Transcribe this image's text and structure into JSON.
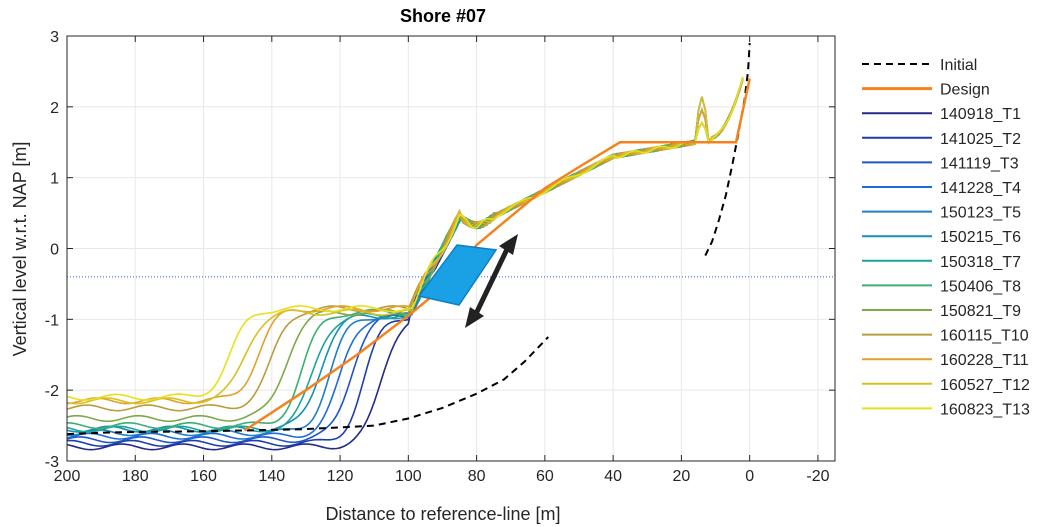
{
  "chart_data": {
    "type": "line",
    "title": "Shore #07",
    "xlabel": "Distance to reference-line [m]",
    "ylabel": "Vertical level w.r.t. NAP [m]",
    "xlim": [
      200,
      -25
    ],
    "ylim": [
      -3,
      3
    ],
    "x_reversed": true,
    "x_ticks": [
      "200",
      "180",
      "160",
      "140",
      "120",
      "100",
      "80",
      "60",
      "40",
      "20",
      "0",
      "-20"
    ],
    "x_tick_values": [
      200,
      180,
      160,
      140,
      120,
      100,
      80,
      60,
      40,
      20,
      0,
      -20
    ],
    "y_ticks": [
      "-3",
      "-2",
      "-1",
      "0",
      "1",
      "2",
      "3"
    ],
    "y_tick_values": [
      -3,
      -2,
      -1,
      0,
      1,
      2,
      3
    ],
    "grid": true,
    "legend_position": "outside-right",
    "reference_line": {
      "y": -0.4,
      "color": "#3355ff",
      "style": "dotted"
    },
    "series": [
      {
        "name": "Initial",
        "style": "dashed",
        "color": "#000000",
        "segments": [
          [
            [
              200,
              -2.62
            ],
            [
              190,
              -2.6
            ],
            [
              180,
              -2.59
            ],
            [
              160,
              -2.58
            ],
            [
              148,
              -2.57
            ],
            [
              130,
              -2.55
            ],
            [
              110,
              -2.5
            ],
            [
              100,
              -2.4
            ],
            [
              90,
              -2.25
            ],
            [
              80,
              -2.05
            ],
            [
              72,
              -1.85
            ],
            [
              66,
              -1.6
            ],
            [
              62,
              -1.4
            ],
            [
              59,
              -1.25
            ]
          ],
          [
            [
              13,
              -0.1
            ],
            [
              11,
              0.1
            ],
            [
              9,
              0.4
            ],
            [
              7,
              0.75
            ],
            [
              5,
              1.2
            ],
            [
              3,
              1.7
            ],
            [
              1.5,
              2.1
            ],
            [
              0.5,
              2.5
            ],
            [
              0,
              2.9
            ]
          ]
        ]
      },
      {
        "name": "Design",
        "style": "solid",
        "color": "#f5821f",
        "points": [
          [
            148,
            -2.57
          ],
          [
            130,
            -2.0
          ],
          [
            115,
            -1.5
          ],
          [
            100,
            -0.95
          ],
          [
            90,
            -0.55
          ],
          [
            80,
            0.05
          ],
          [
            70,
            0.45
          ],
          [
            60,
            0.85
          ],
          [
            50,
            1.15
          ],
          [
            38,
            1.5
          ],
          [
            20,
            1.5
          ],
          [
            4,
            1.5
          ],
          [
            0,
            2.4
          ]
        ]
      },
      {
        "name": "140918_T1",
        "style": "solid",
        "color": "#222a8a",
        "start": -2.8,
        "plateau": -0.95,
        "toe": 118
      },
      {
        "name": "141025_T2",
        "style": "solid",
        "color": "#1e3eaa",
        "start": -2.75,
        "plateau": -0.95,
        "toe": 123
      },
      {
        "name": "141119_T3",
        "style": "solid",
        "color": "#1f55c7",
        "start": -2.7,
        "plateau": -0.95,
        "toe": 127
      },
      {
        "name": "141228_T4",
        "style": "solid",
        "color": "#1d6dd6",
        "start": -2.65,
        "plateau": -0.95,
        "toe": 130
      },
      {
        "name": "150123_T5",
        "style": "solid",
        "color": "#1d7fc6",
        "start": -2.6,
        "plateau": -0.95,
        "toe": 133
      },
      {
        "name": "150215_T6",
        "style": "solid",
        "color": "#1592b2",
        "start": -2.55,
        "plateau": -0.95,
        "toe": 136
      },
      {
        "name": "150318_T7",
        "style": "solid",
        "color": "#1ba59a",
        "start": -2.55,
        "plateau": -0.95,
        "toe": 138
      },
      {
        "name": "150406_T8",
        "style": "solid",
        "color": "#3ab070",
        "start": -2.5,
        "plateau": -0.9,
        "toe": 141
      },
      {
        "name": "150821_T9",
        "style": "solid",
        "color": "#7fa848",
        "start": -2.4,
        "plateau": -0.9,
        "toe": 146
      },
      {
        "name": "160115_T10",
        "style": "solid",
        "color": "#b89d3a",
        "start": -2.25,
        "plateau": -0.85,
        "toe": 150
      },
      {
        "name": "160228_T11",
        "style": "solid",
        "color": "#e0a22a",
        "start": -2.15,
        "plateau": -0.85,
        "toe": 154
      },
      {
        "name": "160527_T12",
        "style": "solid",
        "color": "#d8c021",
        "start": -2.15,
        "plateau": -0.9,
        "toe": 158
      },
      {
        "name": "160823_T13",
        "style": "solid",
        "color": "#e9e01a",
        "start": -2.1,
        "plateau": -0.85,
        "toe": 162
      }
    ]
  }
}
